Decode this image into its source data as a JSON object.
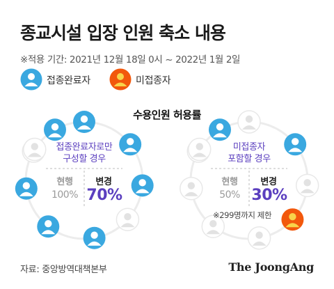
{
  "title": "종교시설 입장 인원 축소 내용",
  "subtitle": "※적용 기간: 2021년 12월 18일 0시 ~ 2022년 1월 2일",
  "legend": [
    {
      "label": "접종완료자",
      "color": "#3aa8e0"
    },
    {
      "label": "미접종자",
      "color": "#f2580c"
    }
  ],
  "section_title": "수용인원 허용률",
  "left_circle": {
    "label_line1": "접종완료자로만",
    "label_line2": "구성할 경우",
    "current_label": "현행",
    "current_value": "100%",
    "changed_label": "변경",
    "changed_value": "70%",
    "filled": 7,
    "total": 10
  },
  "right_circle": {
    "label_line1": "미접종자",
    "label_line2": "포함할 경우",
    "current_label": "현행",
    "current_value": "50%",
    "changed_label": "변경",
    "changed_value": "30%",
    "note": "※299명까지 제한",
    "filled_blue": 2,
    "filled_orange": 1,
    "total": 10
  },
  "colors": {
    "blue": "#3aa8e0",
    "orange": "#f2580c",
    "gray": "#e2e2e2",
    "accent": "#5b3fbf"
  },
  "source": "자료: 중앙방역대책본부",
  "brand": "The JoongAng"
}
